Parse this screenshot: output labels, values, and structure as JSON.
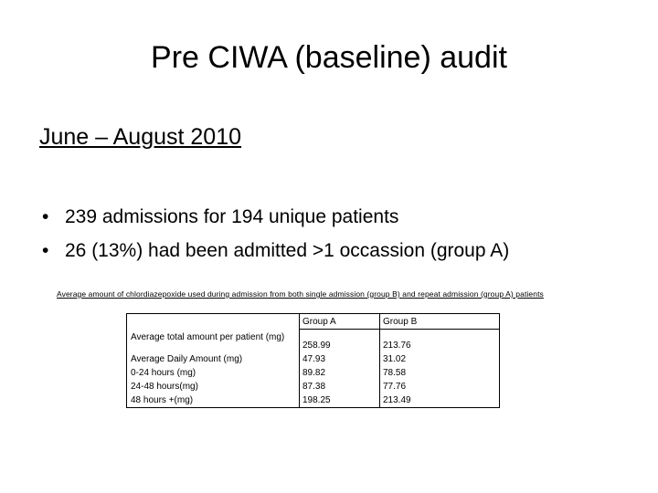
{
  "slide": {
    "title": "Pre CIWA (baseline) audit",
    "subtitle": "June – August 2010",
    "bullets": [
      "239 admissions for 194 unique patients",
      "26 (13%) had been admitted >1 occassion (group A)"
    ],
    "caption": "Average amount of chlordiazepoxide used during admission from both single admission (group B) and repeat admission (group A) patients",
    "table": {
      "header": [
        "Group A",
        "Group B"
      ],
      "rows": [
        [
          "Average total amount per patient (mg)",
          "258.99",
          "213.76"
        ],
        [
          "Average Daily Amount (mg)",
          "47.93",
          "31.02"
        ],
        [
          "0-24 hours (mg)",
          "89.82",
          "78.58"
        ],
        [
          "24-48 hours(mg)",
          "87.38",
          "77.76"
        ],
        [
          "48 hours +(mg)",
          "198.25",
          "213.49"
        ]
      ]
    }
  }
}
